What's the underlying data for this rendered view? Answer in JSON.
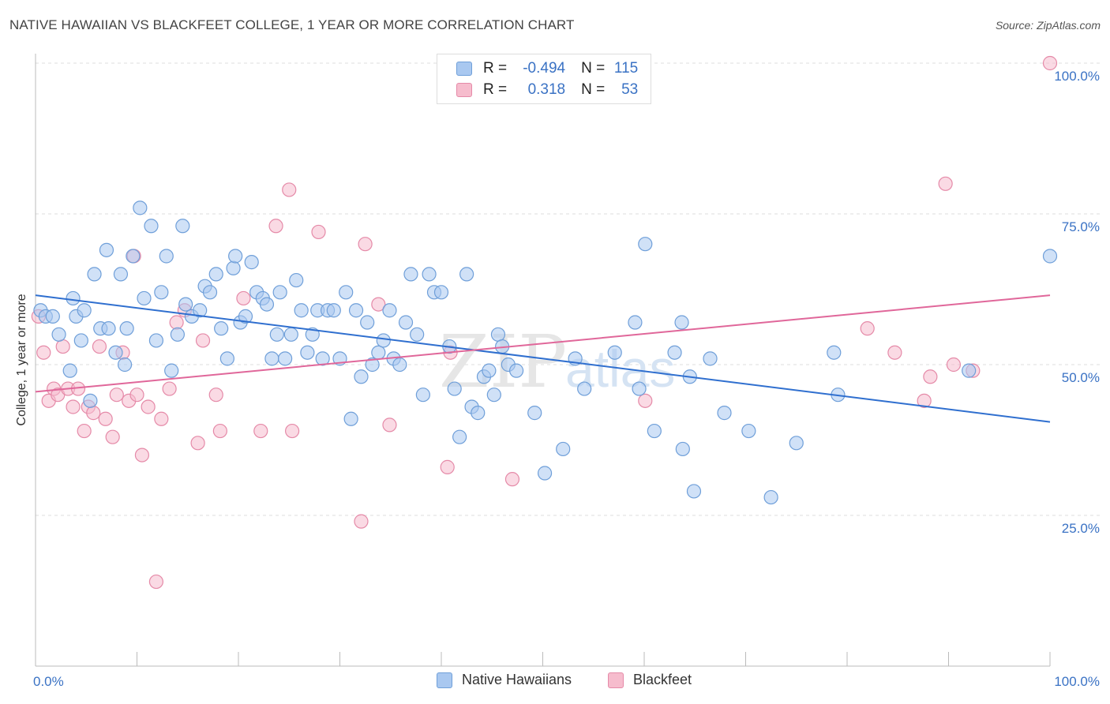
{
  "header": {
    "title": "NATIVE HAWAIIAN VS BLACKFEET COLLEGE, 1 YEAR OR MORE CORRELATION CHART",
    "source": "Source: ZipAtlas.com"
  },
  "legend": {
    "rows": [
      {
        "r_label": "R =",
        "r_value": "-0.494",
        "n_label": "N =",
        "n_value": "115"
      },
      {
        "r_label": "R =",
        "r_value": "0.318",
        "n_label": "N =",
        "n_value": "53"
      }
    ]
  },
  "watermark": {
    "zip": "ZIP",
    "atlas": "atlas"
  },
  "colors": {
    "blue_fill": "#a9c8f0",
    "blue_stroke": "#6f9fd9",
    "blue_line": "#2f6fcf",
    "pink_fill": "#f6bccd",
    "pink_stroke": "#e58aa8",
    "pink_line": "#e0679a",
    "tick_label": "#3a72c4",
    "grid": "#dddddd"
  },
  "chart_data": {
    "type": "scatter",
    "title": "NATIVE HAWAIIAN VS BLACKFEET COLLEGE, 1 YEAR OR MORE CORRELATION CHART",
    "xlabel": "",
    "ylabel": "College, 1 year or more",
    "x_tick_labels": [
      "0.0%",
      "100.0%"
    ],
    "y_tick_labels": [
      "25.0%",
      "50.0%",
      "75.0%",
      "100.0%"
    ],
    "y_ticks": [
      25,
      50,
      75,
      100
    ],
    "xlim": [
      0,
      100
    ],
    "ylim": [
      0,
      100
    ],
    "grid": true,
    "legend_position": "top-center",
    "series": [
      {
        "name": "Native Hawaiians",
        "color": "#a9c8f0",
        "points": [
          [
            0.5,
            59
          ],
          [
            1.0,
            58
          ],
          [
            1.7,
            58
          ],
          [
            2.3,
            55
          ],
          [
            3.4,
            49
          ],
          [
            3.7,
            61
          ],
          [
            4.0,
            58
          ],
          [
            4.5,
            54
          ],
          [
            4.8,
            59
          ],
          [
            5.4,
            44
          ],
          [
            5.8,
            65
          ],
          [
            6.4,
            56
          ],
          [
            7.0,
            69
          ],
          [
            7.2,
            56
          ],
          [
            7.9,
            52
          ],
          [
            8.4,
            65
          ],
          [
            8.8,
            50
          ],
          [
            9.0,
            56
          ],
          [
            9.6,
            68
          ],
          [
            10.3,
            76
          ],
          [
            10.7,
            61
          ],
          [
            11.4,
            73
          ],
          [
            11.9,
            54
          ],
          [
            12.4,
            62
          ],
          [
            12.9,
            68
          ],
          [
            13.4,
            49
          ],
          [
            14.0,
            55
          ],
          [
            14.5,
            73
          ],
          [
            14.8,
            60
          ],
          [
            15.4,
            58
          ],
          [
            16.2,
            59
          ],
          [
            16.7,
            63
          ],
          [
            17.2,
            62
          ],
          [
            17.8,
            65
          ],
          [
            18.3,
            56
          ],
          [
            18.9,
            51
          ],
          [
            19.5,
            66
          ],
          [
            19.7,
            68
          ],
          [
            20.2,
            57
          ],
          [
            20.7,
            58
          ],
          [
            21.3,
            67
          ],
          [
            21.8,
            62
          ],
          [
            22.4,
            61
          ],
          [
            22.8,
            60
          ],
          [
            23.3,
            51
          ],
          [
            23.8,
            55
          ],
          [
            24.1,
            62
          ],
          [
            24.6,
            51
          ],
          [
            25.2,
            55
          ],
          [
            25.7,
            64
          ],
          [
            26.2,
            59
          ],
          [
            26.8,
            52
          ],
          [
            27.3,
            55
          ],
          [
            27.8,
            59
          ],
          [
            28.3,
            51
          ],
          [
            28.8,
            59
          ],
          [
            29.4,
            59
          ],
          [
            30.0,
            51
          ],
          [
            30.6,
            62
          ],
          [
            31.1,
            41
          ],
          [
            31.6,
            59
          ],
          [
            32.1,
            48
          ],
          [
            32.7,
            57
          ],
          [
            33.2,
            50
          ],
          [
            33.8,
            52
          ],
          [
            34.3,
            54
          ],
          [
            34.9,
            59
          ],
          [
            35.3,
            51
          ],
          [
            35.9,
            50
          ],
          [
            36.5,
            57
          ],
          [
            37.0,
            65
          ],
          [
            37.6,
            55
          ],
          [
            38.2,
            45
          ],
          [
            38.8,
            65
          ],
          [
            39.3,
            62
          ],
          [
            40.0,
            62
          ],
          [
            40.8,
            53
          ],
          [
            41.3,
            46
          ],
          [
            41.8,
            38
          ],
          [
            42.5,
            65
          ],
          [
            43.0,
            43
          ],
          [
            43.6,
            42
          ],
          [
            44.2,
            48
          ],
          [
            44.7,
            49
          ],
          [
            45.2,
            45
          ],
          [
            45.6,
            55
          ],
          [
            46.0,
            53
          ],
          [
            46.6,
            50
          ],
          [
            47.4,
            49
          ],
          [
            49.2,
            42
          ],
          [
            50.2,
            32
          ],
          [
            52.0,
            36
          ],
          [
            53.2,
            51
          ],
          [
            54.1,
            46
          ],
          [
            57.1,
            52
          ],
          [
            59.1,
            57
          ],
          [
            59.5,
            46
          ],
          [
            60.1,
            70
          ],
          [
            61.0,
            39
          ],
          [
            63.0,
            52
          ],
          [
            63.7,
            57
          ],
          [
            63.8,
            36
          ],
          [
            64.5,
            48
          ],
          [
            64.9,
            29
          ],
          [
            66.5,
            51
          ],
          [
            67.9,
            42
          ],
          [
            70.3,
            39
          ],
          [
            72.5,
            28
          ],
          [
            75.0,
            37
          ],
          [
            78.7,
            52
          ],
          [
            79.1,
            45
          ],
          [
            92.0,
            49
          ],
          [
            100.0,
            68
          ]
        ]
      },
      {
        "name": "Blackfeet",
        "color": "#f6bccd",
        "points": [
          [
            0.3,
            58
          ],
          [
            0.8,
            52
          ],
          [
            1.3,
            44
          ],
          [
            1.8,
            46
          ],
          [
            2.2,
            45
          ],
          [
            2.7,
            53
          ],
          [
            3.2,
            46
          ],
          [
            3.7,
            43
          ],
          [
            4.2,
            46
          ],
          [
            4.8,
            39
          ],
          [
            5.2,
            43
          ],
          [
            5.7,
            42
          ],
          [
            6.3,
            53
          ],
          [
            6.9,
            41
          ],
          [
            7.6,
            38
          ],
          [
            8.0,
            45
          ],
          [
            8.6,
            52
          ],
          [
            9.2,
            44
          ],
          [
            9.7,
            68
          ],
          [
            10.0,
            45
          ],
          [
            10.5,
            35
          ],
          [
            11.1,
            43
          ],
          [
            11.9,
            14
          ],
          [
            12.4,
            41
          ],
          [
            13.2,
            46
          ],
          [
            13.9,
            57
          ],
          [
            14.7,
            59
          ],
          [
            16.0,
            37
          ],
          [
            16.5,
            54
          ],
          [
            17.8,
            45
          ],
          [
            18.2,
            39
          ],
          [
            20.5,
            61
          ],
          [
            22.2,
            39
          ],
          [
            23.7,
            73
          ],
          [
            25.0,
            79
          ],
          [
            25.3,
            39
          ],
          [
            27.9,
            72
          ],
          [
            32.1,
            24
          ],
          [
            32.5,
            70
          ],
          [
            33.8,
            60
          ],
          [
            34.9,
            40
          ],
          [
            40.6,
            33
          ],
          [
            40.9,
            52
          ],
          [
            47.0,
            31
          ],
          [
            60.1,
            44
          ],
          [
            82.0,
            56
          ],
          [
            84.7,
            52
          ],
          [
            87.6,
            44
          ],
          [
            88.2,
            48
          ],
          [
            89.7,
            80
          ],
          [
            90.5,
            50
          ],
          [
            92.4,
            49
          ],
          [
            100.0,
            100
          ]
        ]
      }
    ],
    "trend_lines": [
      {
        "name": "Native Hawaiians",
        "x": [
          0,
          100
        ],
        "y": [
          61.5,
          40.5
        ]
      },
      {
        "name": "Blackfeet",
        "x": [
          0,
          100
        ],
        "y": [
          45.5,
          61.5
        ]
      }
    ]
  },
  "bottom_legend": {
    "items": [
      "Native Hawaiians",
      "Blackfeet"
    ]
  }
}
